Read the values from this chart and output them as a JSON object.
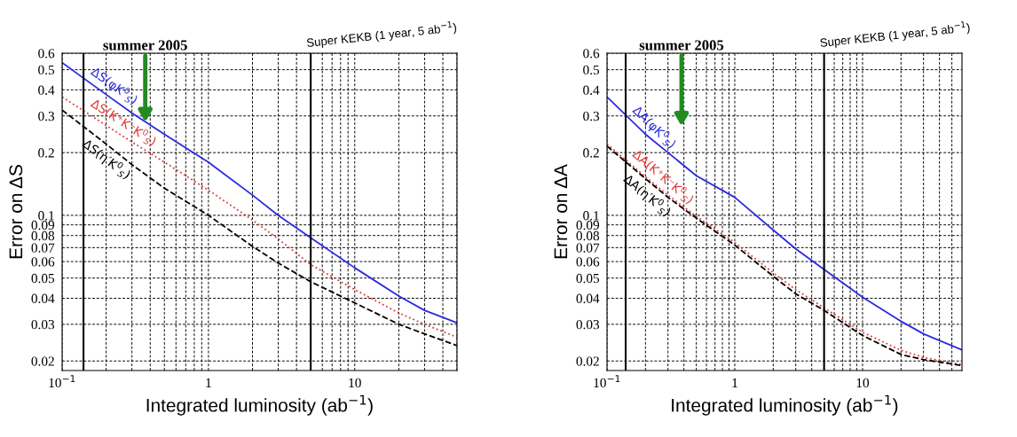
{
  "chart_data": [
    {
      "type": "line",
      "xlabel": "Integrated luminosity (ab$^{−1}$)",
      "ylabel": "Error on ΔS",
      "log": "xy",
      "grid": true,
      "xlim": [
        0.1,
        50
      ],
      "ylim": [
        0.018,
        0.6
      ],
      "xticks": [
        {
          "value": 0.1,
          "label": "10$^{−1}$"
        },
        {
          "value": 0.2,
          "label": null
        },
        {
          "value": 0.3,
          "label": null
        },
        {
          "value": 0.4,
          "label": null
        },
        {
          "value": 0.5,
          "label": null
        },
        {
          "value": 0.6,
          "label": null
        },
        {
          "value": 0.7,
          "label": null
        },
        {
          "value": 0.8,
          "label": null
        },
        {
          "value": 0.9,
          "label": null
        },
        1,
        {
          "value": 2,
          "label": null
        },
        {
          "value": 3,
          "label": null
        },
        {
          "value": 4,
          "label": null
        },
        {
          "value": 5,
          "label": null
        },
        {
          "value": 6,
          "label": null
        },
        {
          "value": 7,
          "label": null
        },
        {
          "value": 8,
          "label": null
        },
        {
          "value": 9,
          "label": null
        },
        10,
        {
          "value": 20,
          "label": null
        },
        {
          "value": 30,
          "label": null
        },
        {
          "value": 40,
          "label": null
        },
        {
          "value": 50,
          "label": null
        }
      ],
      "yticks": [
        0.02,
        0.03,
        0.04,
        0.05,
        0.06,
        0.07,
        0.08,
        0.09,
        0.1,
        0.2,
        0.3,
        0.4,
        0.5,
        0.6
      ],
      "x": [
        0.1,
        0.2,
        0.3,
        0.5,
        1,
        2,
        3,
        5,
        10,
        20,
        30,
        50
      ],
      "series": [
        {
          "name": "ΔS(φK$^{0}$$_{S}$)",
          "color": "#2a2ae0",
          "line_style": "solid",
          "values": [
            0.54,
            0.38,
            0.31,
            0.245,
            0.18,
            0.125,
            0.1,
            0.078,
            0.056,
            0.041,
            0.035,
            0.0305
          ]
        },
        {
          "name": "ΔS(K⁺K⁻K$^{0}$$_{S}$)",
          "color": "#e03a3a",
          "line_style": "dotted",
          "values": [
            0.37,
            0.27,
            0.225,
            0.18,
            0.132,
            0.095,
            0.077,
            0.058,
            0.044,
            0.034,
            0.03,
            0.026
          ]
        },
        {
          "name": "ΔS(η′K$^{0}$$_{S}$)",
          "color": "#000000",
          "line_style": "dashed",
          "values": [
            0.32,
            0.22,
            0.175,
            0.135,
            0.1,
            0.071,
            0.059,
            0.048,
            0.038,
            0.03,
            0.027,
            0.0237
          ]
        }
      ],
      "ref_lines": [
        {
          "axis": "x",
          "value": 0.14,
          "label": null,
          "color": "#000000",
          "line_style": "solid"
        },
        {
          "axis": "x",
          "value": 5,
          "label": "Super KEKB (1 year, 5 ab$^{−1}$)",
          "color": "#000000",
          "line_style": "solid"
        }
      ],
      "annotations": [
        {
          "text": "summer 2005",
          "x": 0.37,
          "y": 0.28
        }
      ]
    },
    {
      "type": "line",
      "xlabel": "Integrated luminosity (ab$^{−1}$)",
      "ylabel": "Error on ΔA",
      "log": "xy",
      "grid": true,
      "xlim": [
        0.1,
        60
      ],
      "ylim": [
        0.018,
        0.6
      ],
      "xticks": [
        {
          "value": 0.1,
          "label": "10$^{−1}$"
        },
        {
          "value": 0.2,
          "label": null
        },
        {
          "value": 0.3,
          "label": null
        },
        {
          "value": 0.4,
          "label": null
        },
        {
          "value": 0.5,
          "label": null
        },
        {
          "value": 0.6,
          "label": null
        },
        {
          "value": 0.7,
          "label": null
        },
        {
          "value": 0.8,
          "label": null
        },
        {
          "value": 0.9,
          "label": null
        },
        1,
        {
          "value": 2,
          "label": null
        },
        {
          "value": 3,
          "label": null
        },
        {
          "value": 4,
          "label": null
        },
        {
          "value": 5,
          "label": null
        },
        {
          "value": 6,
          "label": null
        },
        {
          "value": 7,
          "label": null
        },
        {
          "value": 8,
          "label": null
        },
        {
          "value": 9,
          "label": null
        },
        10,
        {
          "value": 20,
          "label": null
        },
        {
          "value": 30,
          "label": null
        },
        {
          "value": 40,
          "label": null
        },
        {
          "value": 50,
          "label": null
        }
      ],
      "yticks": [
        0.02,
        0.03,
        0.04,
        0.05,
        0.06,
        0.07,
        0.08,
        0.09,
        0.1,
        0.2,
        0.3,
        0.4,
        0.5,
        0.6
      ],
      "x": [
        0.1,
        0.2,
        0.3,
        0.5,
        1,
        2,
        3,
        5,
        10,
        20,
        30,
        60
      ],
      "series": [
        {
          "name": "ΔA(φK$^{0}$$_{S}$)",
          "color": "#2a2ae0",
          "line_style": "solid",
          "values": [
            0.37,
            0.245,
            0.2,
            0.155,
            0.122,
            0.085,
            0.069,
            0.055,
            0.0405,
            0.031,
            0.027,
            0.0226
          ]
        },
        {
          "name": "ΔA(K⁺K⁻K$^{0}$$_{S}$)",
          "color": "#e03a3a",
          "line_style": "dotted",
          "values": [
            0.22,
            0.153,
            0.125,
            0.099,
            0.074,
            0.053,
            0.044,
            0.036,
            0.0275,
            0.0225,
            0.0208,
            0.0192
          ]
        },
        {
          "name": "ΔA(η′K$^{0}$$_{S}$)",
          "color": "#000000",
          "line_style": "dashed",
          "values": [
            0.215,
            0.15,
            0.122,
            0.097,
            0.072,
            0.051,
            0.042,
            0.035,
            0.0265,
            0.0215,
            0.0203,
            0.019
          ]
        }
      ],
      "ref_lines": [
        {
          "axis": "x",
          "value": 0.14,
          "label": null,
          "color": "#000000",
          "line_style": "solid"
        },
        {
          "axis": "x",
          "value": 5,
          "label": "Super KEKB (1 year, 5 ab$^{−1}$)",
          "color": "#000000",
          "line_style": "solid"
        }
      ],
      "annotations": [
        "summer 2005"
      ]
    }
  ]
}
